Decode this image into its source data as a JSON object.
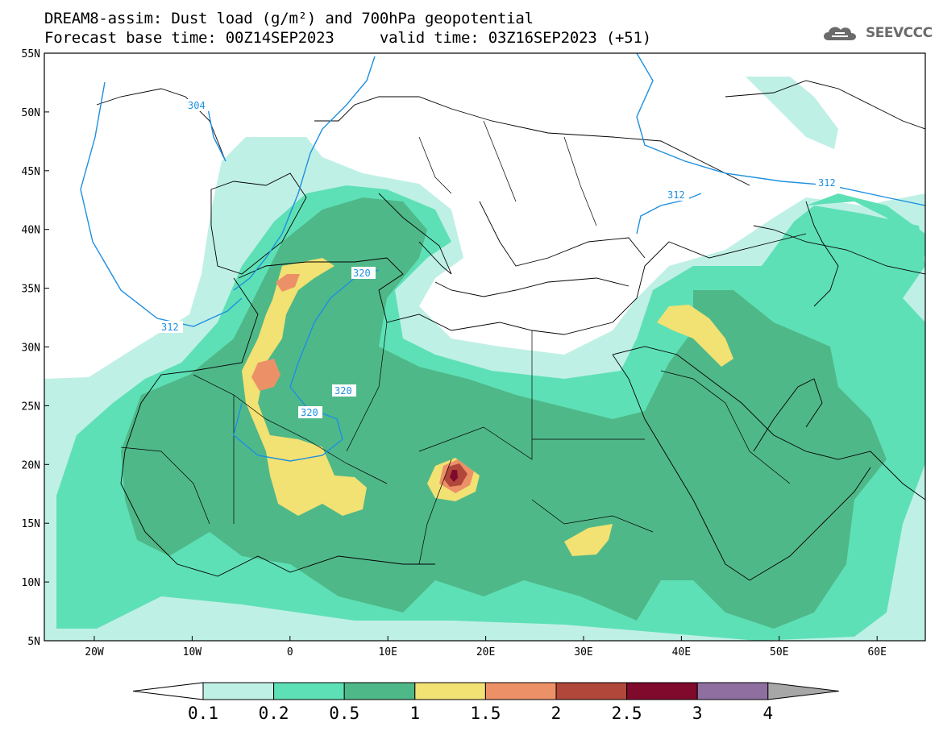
{
  "title": {
    "line1": "DREAM8-assim: Dust load (g/m²) and 700hPa geopotential",
    "line2": "Forecast base time: 00Z14SEP2023     valid time: 03Z16SEP2023 (+51)"
  },
  "logo": {
    "text": "SEEVCCC",
    "icon": "cloud-icon"
  },
  "axes": {
    "lat_labels": [
      "55N",
      "50N",
      "45N",
      "40N",
      "35N",
      "30N",
      "25N",
      "20N",
      "15N",
      "10N",
      "5N"
    ],
    "lon_labels": [
      "20W",
      "10W",
      "0",
      "10E",
      "20E",
      "30E",
      "40E",
      "50E",
      "60E"
    ]
  },
  "isolines": {
    "labels": [
      "304",
      "312",
      "312",
      "312",
      "320",
      "320",
      "320"
    ]
  },
  "colorbar": {
    "labels": [
      "0.1",
      "0.2",
      "0.5",
      "1",
      "1.5",
      "2",
      "2.5",
      "3",
      "4"
    ],
    "colors": [
      "#bff0e5",
      "#5ee0b6",
      "#4fb889",
      "#f2e173",
      "#ec9167",
      "#b0473a",
      "#7f0a2c",
      "#8f6fa0",
      "#a7a7a7"
    ]
  }
}
